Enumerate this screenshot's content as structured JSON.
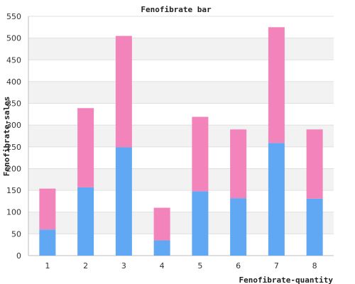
{
  "chart_data": {
    "type": "bar",
    "stacked": true,
    "title": "Fenofibrate bar",
    "xlabel": "Fenofibrate-quantity",
    "ylabel": "Fenofibrate-sales",
    "categories": [
      "1",
      "2",
      "3",
      "4",
      "5",
      "6",
      "7",
      "8"
    ],
    "ylim": [
      0,
      550
    ],
    "yticks": [
      "0",
      "50",
      "100",
      "150",
      "200",
      "250",
      "300",
      "350",
      "400",
      "450",
      "500",
      "550"
    ],
    "grid": true,
    "series": [
      {
        "values": [
          60,
          157,
          249,
          35,
          148,
          132,
          259,
          131
        ],
        "color": "#60a8f4"
      },
      {
        "values": [
          94,
          182,
          256,
          75,
          171,
          158,
          266,
          159
        ],
        "color": "#f283bb"
      }
    ]
  }
}
